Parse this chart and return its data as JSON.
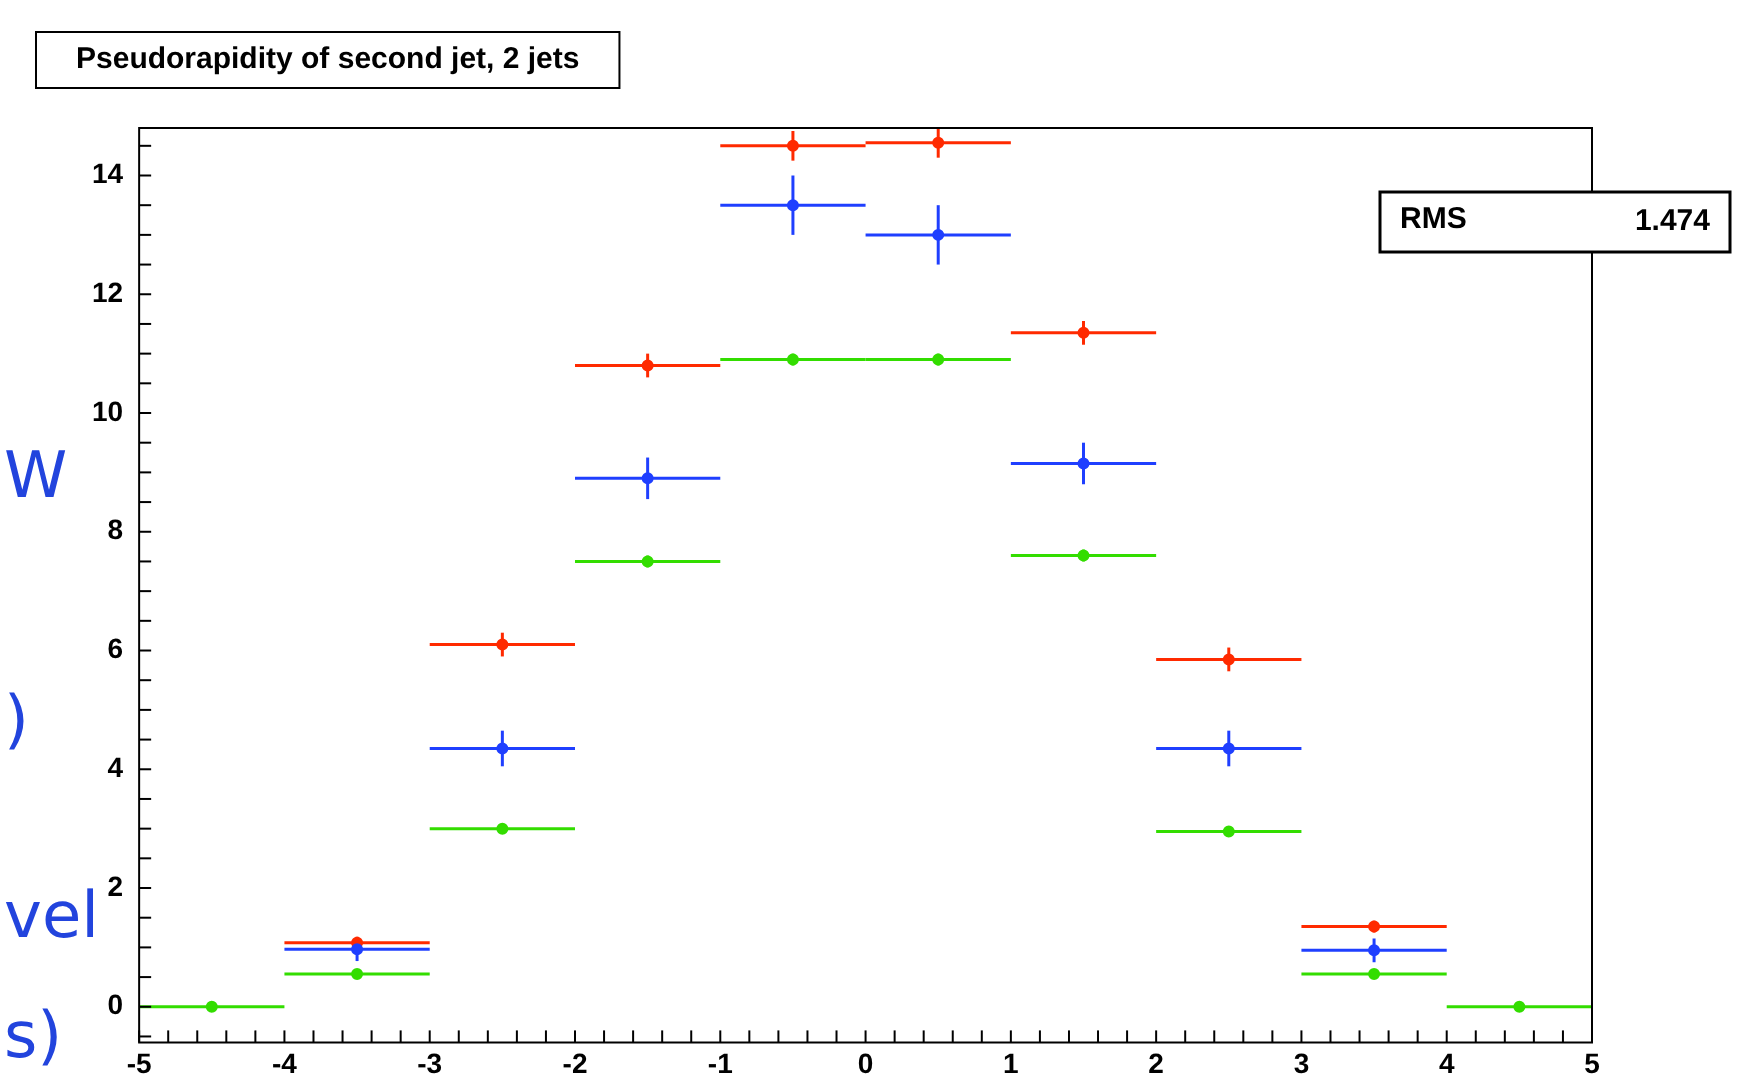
{
  "chart_data": {
    "type": "scatter",
    "title": "Pseudorapidity of second jet, 2 jets",
    "x": [
      -4.5,
      -3.5,
      -2.5,
      -1.5,
      -0.5,
      0.5,
      1.5,
      2.5,
      3.5,
      4.5
    ],
    "series": [
      {
        "color": "#1f3fff",
        "values": [
          null,
          0.97,
          4.35,
          8.9,
          13.5,
          13.0,
          9.15,
          4.35,
          0.95,
          null
        ],
        "errors": [
          null,
          0.2,
          0.3,
          0.35,
          0.5,
          0.5,
          0.35,
          0.3,
          0.2,
          null
        ],
        "xerrors": [
          null,
          0.5,
          0.5,
          0.5,
          0.5,
          0.5,
          0.5,
          0.5,
          0.5,
          null
        ]
      },
      {
        "color": "#ff2a00",
        "values": [
          null,
          1.08,
          6.1,
          10.8,
          14.5,
          14.55,
          11.35,
          5.85,
          1.35,
          null
        ],
        "errors": [
          null,
          0.1,
          0.2,
          0.2,
          0.25,
          0.25,
          0.2,
          0.2,
          0.1,
          null
        ],
        "xerrors": [
          null,
          0.5,
          0.5,
          0.5,
          0.5,
          0.5,
          0.5,
          0.5,
          0.5,
          null
        ]
      },
      {
        "color": "#33dd00",
        "values": [
          0,
          0.55,
          3.0,
          7.5,
          10.9,
          10.9,
          7.6,
          2.95,
          0.55,
          0
        ],
        "errors": [
          null,
          0.05,
          0.08,
          0.1,
          0.1,
          0.1,
          0.1,
          0.08,
          0.05,
          null
        ],
        "xerrors": [
          0.5,
          0.5,
          0.5,
          0.5,
          0.5,
          0.5,
          0.5,
          0.5,
          0.5,
          0.5
        ]
      }
    ],
    "xlim": [
      -5,
      5
    ],
    "xticks": [
      -5,
      -4,
      -3,
      -2,
      -1,
      0,
      1,
      2,
      3,
      4,
      5
    ],
    "ylim": [
      -0.6,
      14.8
    ],
    "yticks": [
      0,
      2,
      4,
      6,
      8,
      10,
      12,
      14
    ],
    "grid": false,
    "legend": false,
    "marker": "circle",
    "annotations": [
      "RMS",
      "1.474",
      "W",
      ")",
      "vel",
      "s)"
    ]
  }
}
